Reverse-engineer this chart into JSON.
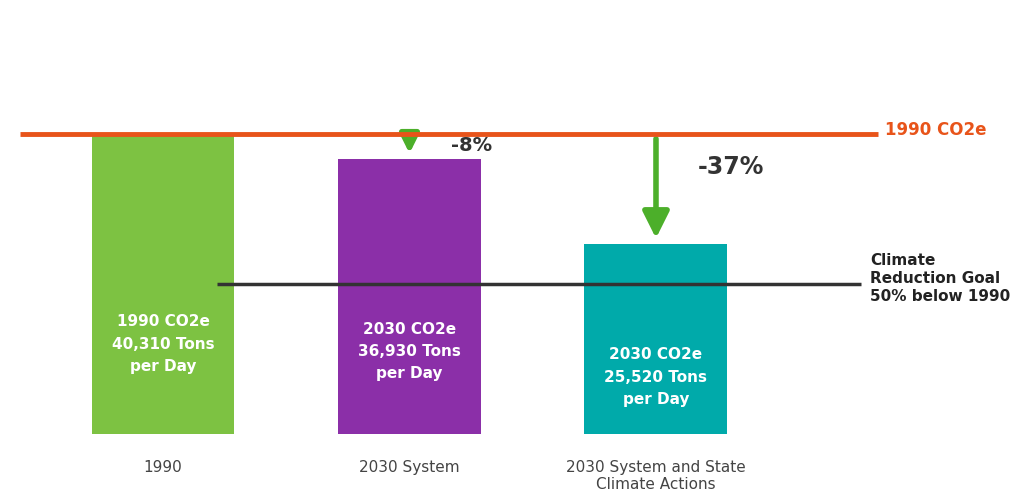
{
  "categories": [
    "1990",
    "2030 System",
    "2030 System and State\nClimate Actions"
  ],
  "values": [
    40310,
    36930,
    25520
  ],
  "bar_colors": [
    "#7DC242",
    "#8B2FA8",
    "#00AAAA"
  ],
  "bar_width": 0.58,
  "background_color": "#ffffff",
  "reference_line_value": 20155,
  "reference_line_color": "#333333",
  "co2e_line_value": 40310,
  "co2e_line_color": "#E8541A",
  "co2e_label": "1990 CO2e",
  "arrow_color": "#4CAF2A",
  "percent_labels": [
    "-8%",
    "-37%"
  ],
  "percent_label_fontsize": 14,
  "bar_label_fontsize": 11,
  "bar_labels": [
    "1990 CO2e\n40,310 Tons\nper Day",
    "2030 CO2e\n36,930 Tons\nper Day",
    "2030 CO2e\n25,520 Tons\nper Day"
  ],
  "climate_goal_label_line1": "Climate",
  "climate_goal_label_line2": "Reduction Goal",
  "climate_goal_label_line3": "50% below 1990",
  "ylim_min": 0,
  "ylim_max": 58000,
  "xlabel_fontsize": 11,
  "figsize": [
    10.24,
    4.92
  ],
  "dpi": 100
}
